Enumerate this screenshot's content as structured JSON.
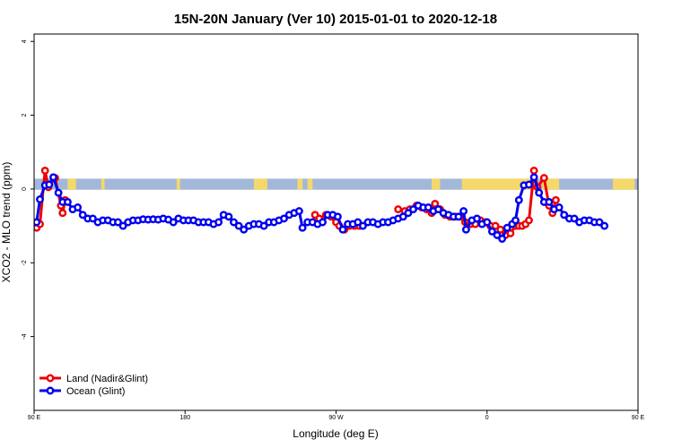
{
  "chart_data": {
    "type": "line",
    "title": "15N-20N January (Ver 10)   2015-01-01 to 2020-12-18",
    "xlabel": "Longitude (deg E)",
    "ylabel": "XCO2 - MLO trend (ppm)",
    "xlim": [
      90,
      450
    ],
    "ylim": [
      -6,
      4.2
    ],
    "x_ticks": [
      {
        "value": 90,
        "label": "90 E"
      },
      {
        "value": 180,
        "label": "180"
      },
      {
        "value": 270,
        "label": "90 W"
      },
      {
        "value": 360,
        "label": "0"
      },
      {
        "value": 450,
        "label": "90 E"
      },
      {
        "value": 540,
        "label": "180"
      }
    ],
    "y_ticks": [
      {
        "value": 4,
        "label": "4"
      },
      {
        "value": 2,
        "label": "2"
      },
      {
        "value": 0,
        "label": "0"
      },
      {
        "value": -2,
        "label": "-2"
      },
      {
        "value": -4,
        "label": "-4"
      }
    ],
    "legend": {
      "position": "bottom-left",
      "entries": [
        {
          "label": "Land (Nadir&Glint)",
          "color": "#ee0000"
        },
        {
          "label": "Ocean (Glint)",
          "color": "#0000ee"
        }
      ]
    },
    "colors": {
      "land": "#ee0000",
      "ocean": "#0000ee",
      "map_ocean": "#a3b8d9",
      "map_land": "#f5d86a"
    },
    "map_strip": {
      "y_range": [
        -0.02,
        0.28
      ],
      "land_spans": [
        [
          110,
          115
        ],
        [
          130,
          132
        ],
        [
          175,
          177
        ],
        [
          221,
          229
        ],
        [
          247,
          250
        ],
        [
          253,
          256
        ],
        [
          327,
          332
        ],
        [
          345,
          390
        ],
        [
          393,
          403
        ],
        [
          435,
          448
        ],
        [
          455,
          458
        ]
      ]
    },
    "series": [
      {
        "name": "Land (Nadir&Glint)",
        "color": "#ee0000",
        "segments": [
          [
            [
              91.5,
              -1.05
            ],
            [
              93.5,
              -0.95
            ],
            [
              96.5,
              0.5
            ],
            [
              98.5,
              0.05
            ],
            [
              102.5,
              0.3
            ],
            [
              106,
              -0.45
            ],
            [
              107,
              -0.65
            ],
            [
              108.5,
              -0.3
            ]
          ],
          [
            [
              257.5,
              -0.7
            ],
            [
              260,
              -0.8
            ],
            [
              264,
              -0.7
            ],
            [
              267,
              -0.75
            ],
            [
              270,
              -0.9
            ],
            [
              272,
              -1.0
            ],
            [
              275,
              -1.1
            ],
            [
              278,
              -1.0
            ],
            [
              281,
              -1.0
            ],
            [
              284,
              -1.0
            ]
          ],
          [
            [
              307,
              -0.55
            ],
            [
              311,
              -0.6
            ],
            [
              314,
              -0.55
            ],
            [
              318,
              -0.45
            ],
            [
              321,
              -0.5
            ],
            [
              324,
              -0.55
            ],
            [
              327,
              -0.65
            ],
            [
              329,
              -0.4
            ],
            [
              332,
              -0.55
            ],
            [
              335,
              -0.7
            ],
            [
              338,
              -0.75
            ],
            [
              341,
              -0.75
            ],
            [
              344,
              -0.75
            ],
            [
              347,
              -0.9
            ],
            [
              350,
              -0.95
            ],
            [
              353,
              -0.95
            ],
            [
              356,
              -0.85
            ],
            [
              359,
              -0.9
            ],
            [
              362,
              -1.0
            ],
            [
              365,
              -1.0
            ],
            [
              368,
              -1.1
            ],
            [
              371,
              -1.25
            ],
            [
              374,
              -1.2
            ],
            [
              377,
              -1.0
            ],
            [
              379,
              -1.0
            ],
            [
              381,
              -1.0
            ],
            [
              383,
              -0.95
            ],
            [
              385,
              -0.85
            ],
            [
              388,
              0.5
            ],
            [
              390,
              0.05
            ],
            [
              394,
              0.3
            ],
            [
              397,
              -0.45
            ],
            [
              399,
              -0.65
            ],
            [
              401,
              -0.3
            ]
          ]
        ]
      },
      {
        "name": "Ocean (Glint)",
        "color": "#0000ee",
        "segments": [
          [
            [
              91.5,
              -0.9
            ],
            [
              93.5,
              -0.28
            ],
            [
              96.5,
              0.1
            ],
            [
              99,
              0.12
            ],
            [
              101.5,
              0.32
            ],
            [
              104.5,
              -0.1
            ],
            [
              107,
              -0.35
            ],
            [
              110,
              -0.35
            ],
            [
              113,
              -0.55
            ],
            [
              116,
              -0.5
            ],
            [
              119,
              -0.7
            ],
            [
              122,
              -0.8
            ],
            [
              125,
              -0.8
            ],
            [
              128,
              -0.9
            ],
            [
              131,
              -0.85
            ],
            [
              134,
              -0.85
            ],
            [
              137,
              -0.9
            ],
            [
              140,
              -0.9
            ],
            [
              143,
              -1.0
            ],
            [
              146,
              -0.9
            ],
            [
              149,
              -0.85
            ],
            [
              152,
              -0.85
            ],
            [
              155,
              -0.82
            ],
            [
              158,
              -0.83
            ],
            [
              161,
              -0.82
            ],
            [
              164,
              -0.83
            ],
            [
              167,
              -0.8
            ],
            [
              170,
              -0.83
            ],
            [
              173,
              -0.9
            ],
            [
              176,
              -0.8
            ],
            [
              179,
              -0.85
            ],
            [
              182,
              -0.85
            ],
            [
              185,
              -0.85
            ],
            [
              188,
              -0.9
            ],
            [
              191,
              -0.9
            ],
            [
              194,
              -0.9
            ],
            [
              197,
              -0.95
            ],
            [
              200,
              -0.9
            ],
            [
              203,
              -0.7
            ],
            [
              206,
              -0.75
            ],
            [
              209,
              -0.9
            ],
            [
              212,
              -1.0
            ],
            [
              215,
              -1.1
            ],
            [
              218,
              -1.0
            ],
            [
              221,
              -0.95
            ],
            [
              224,
              -0.95
            ],
            [
              227,
              -1.0
            ],
            [
              230,
              -0.9
            ],
            [
              233,
              -0.9
            ],
            [
              236,
              -0.85
            ],
            [
              239,
              -0.8
            ],
            [
              242,
              -0.7
            ],
            [
              245,
              -0.65
            ],
            [
              248,
              -0.6
            ],
            [
              250,
              -1.05
            ],
            [
              253,
              -0.9
            ],
            [
              256,
              -0.9
            ],
            [
              259,
              -0.95
            ],
            [
              262,
              -0.9
            ],
            [
              265,
              -0.7
            ],
            [
              268,
              -0.7
            ],
            [
              271,
              -0.75
            ],
            [
              274,
              -1.1
            ],
            [
              277,
              -0.95
            ],
            [
              280,
              -0.95
            ],
            [
              283,
              -0.9
            ],
            [
              286,
              -1.0
            ],
            [
              289,
              -0.9
            ],
            [
              292,
              -0.9
            ],
            [
              295,
              -0.95
            ],
            [
              298,
              -0.9
            ],
            [
              301,
              -0.9
            ],
            [
              304,
              -0.85
            ],
            [
              307,
              -0.8
            ],
            [
              310,
              -0.75
            ],
            [
              313,
              -0.65
            ],
            [
              316,
              -0.55
            ],
            [
              319,
              -0.45
            ],
            [
              322,
              -0.5
            ],
            [
              325,
              -0.5
            ],
            [
              328,
              -0.6
            ],
            [
              331,
              -0.55
            ],
            [
              334,
              -0.65
            ],
            [
              337,
              -0.7
            ],
            [
              340,
              -0.75
            ],
            [
              343,
              -0.75
            ],
            [
              346,
              -0.6
            ],
            [
              347.5,
              -1.1
            ],
            [
              351,
              -0.85
            ],
            [
              354,
              -0.8
            ],
            [
              357,
              -0.95
            ],
            [
              360,
              -0.9
            ],
            [
              363,
              -1.15
            ],
            [
              366,
              -1.25
            ],
            [
              369,
              -1.35
            ],
            [
              372,
              -1.05
            ],
            [
              375,
              -0.95
            ],
            [
              377,
              -0.85
            ],
            [
              379,
              -0.3
            ],
            [
              382,
              0.1
            ],
            [
              385,
              0.12
            ],
            [
              388,
              0.32
            ],
            [
              391,
              -0.1
            ],
            [
              394,
              -0.35
            ],
            [
              397,
              -0.35
            ],
            [
              400,
              -0.55
            ],
            [
              403,
              -0.5
            ],
            [
              406,
              -0.7
            ],
            [
              409,
              -0.8
            ],
            [
              412,
              -0.8
            ],
            [
              415,
              -0.9
            ],
            [
              418,
              -0.85
            ],
            [
              421,
              -0.85
            ],
            [
              424,
              -0.9
            ],
            [
              427,
              -0.9
            ],
            [
              430,
              -1.0
            ]
          ]
        ]
      }
    ]
  }
}
